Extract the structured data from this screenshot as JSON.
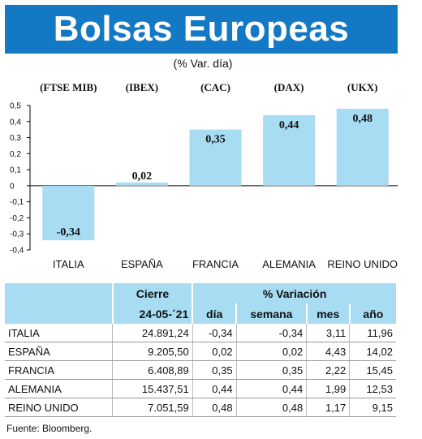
{
  "header": {
    "title": "Bolsas Europeas",
    "subtitle": "(% Var. día)"
  },
  "chart_data": {
    "type": "bar",
    "categories": [
      "ITALIA",
      "ESPAÑA",
      "FRANCIA",
      "ALEMANIA",
      "REINO UNIDO"
    ],
    "indices": [
      "(FTSE MIB)",
      "(IBEX)",
      "(CAC)",
      "(DAX)",
      "(UKX)"
    ],
    "values": [
      -0.34,
      0.02,
      0.35,
      0.44,
      0.48
    ],
    "value_labels": [
      "-0,34",
      "0,02",
      "0,35",
      "0,44",
      "0,48"
    ],
    "ylim": [
      -0.4,
      0.5
    ],
    "yticks": [
      "0,5",
      "0,4",
      "0,3",
      "0,2",
      "0,1",
      "0",
      "-0,1",
      "-0,2",
      "-0,3",
      "-0,4"
    ],
    "bar_color": "#a8dcf3"
  },
  "table": {
    "group_headers": [
      "Cierre",
      "% Variación"
    ],
    "date": "24-05-´21",
    "columns": [
      "día",
      "semana",
      "mes",
      "año"
    ],
    "rows": [
      {
        "name": "ITALIA",
        "cierre": "24.891,24",
        "dia": "-0,34",
        "semana": "-0,34",
        "mes": "3,11",
        "ano": "11,96"
      },
      {
        "name": "ESPAÑA",
        "cierre": "9.205,50",
        "dia": "0,02",
        "semana": "0,02",
        "mes": "4,43",
        "ano": "14,02"
      },
      {
        "name": "FRANCIA",
        "cierre": "6.408,89",
        "dia": "0,35",
        "semana": "0,35",
        "mes": "2,22",
        "ano": "15,45"
      },
      {
        "name": "ALEMANIA",
        "cierre": "15.437,51",
        "dia": "0,44",
        "semana": "0,44",
        "mes": "1,99",
        "ano": "12,53"
      },
      {
        "name": "REINO UNIDO",
        "cierre": "7.051,59",
        "dia": "0,48",
        "semana": "0,48",
        "mes": "1,17",
        "ano": "9,15"
      }
    ]
  },
  "source": "Fuente: Bloomberg.",
  "colors": {
    "banner": "#1479c4",
    "accent": "#a8dcf3"
  }
}
